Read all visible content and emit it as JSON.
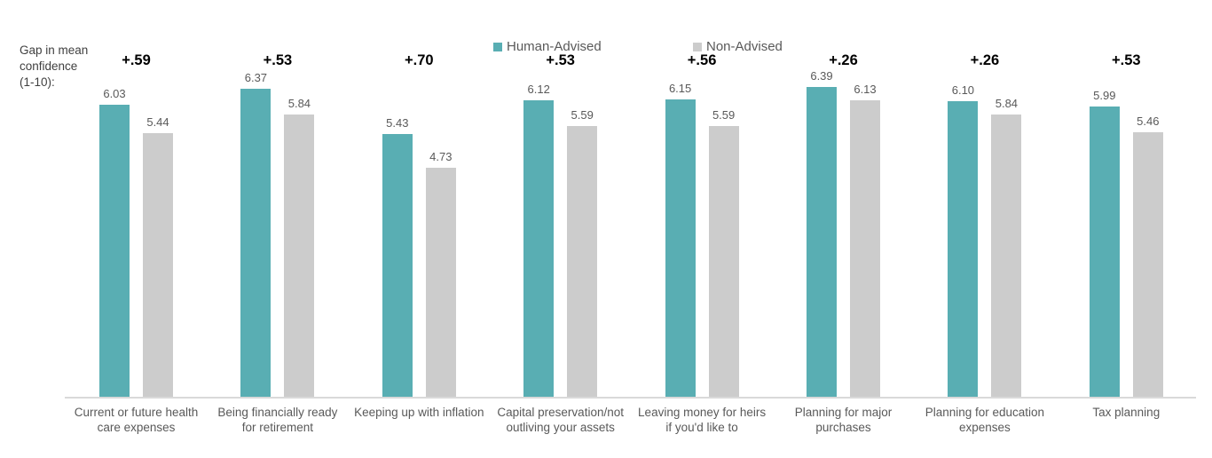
{
  "axis_note": "Gap in mean\nconfidence\n(1-10):",
  "chart_data": {
    "type": "bar",
    "title": "",
    "categories": [
      "Current or future health\ncare expenses",
      "Being financially ready\nfor retirement",
      "Keeping up with inflation",
      "Capital preservation/not\noutliving your assets",
      "Leaving money for heirs\nif you'd like to",
      "Planning for major\npurchases",
      "Planning for education\nexpenses",
      "Tax planning"
    ],
    "series": [
      {
        "name": "Human-Advised",
        "color": "#59AEB3",
        "values": [
          6.03,
          6.37,
          5.43,
          6.12,
          6.15,
          6.39,
          6.1,
          5.99
        ],
        "value_labels": [
          "6.03",
          "6.37",
          "5.43",
          "6.12",
          "6.15",
          "6.39",
          "6.10",
          "5.99"
        ]
      },
      {
        "name": "Non-Advised",
        "color": "#CCCCCC",
        "values": [
          5.44,
          5.84,
          4.73,
          5.59,
          5.59,
          6.13,
          5.84,
          5.46
        ],
        "value_labels": [
          "5.44",
          "5.84",
          "4.73",
          "5.59",
          "5.59",
          "6.13",
          "5.84",
          "5.46"
        ]
      }
    ],
    "gap_labels": [
      "+.59",
      "+.53",
      "+.70",
      "+.53",
      "+.56",
      "+.26",
      "+.26",
      "+.53"
    ],
    "xlabel": "",
    "ylabel": "",
    "ylim": [
      0,
      8.2
    ],
    "grid": false,
    "axes_visible": false,
    "legend_position": "top-center",
    "value_labels_shown": true,
    "baseline_color": "#D9D9D9",
    "value_label_color": "#595959",
    "gap_label_color": "#000000",
    "category_label_color": "#595959"
  }
}
